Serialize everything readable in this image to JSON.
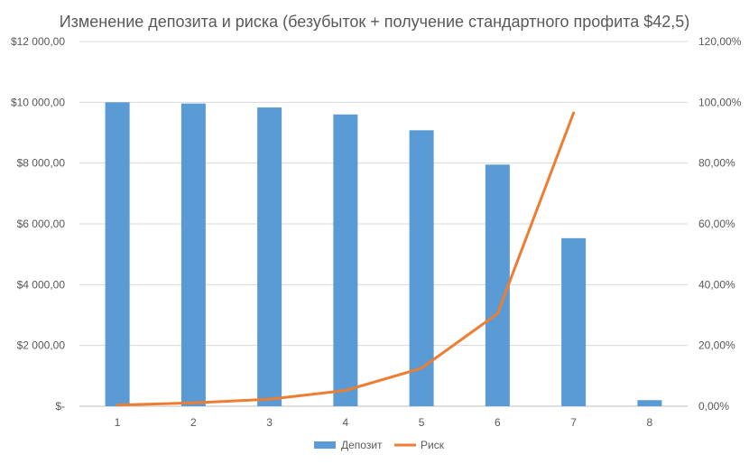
{
  "chart_data": {
    "type": "bar",
    "title": "Изменение депозита и риска (безубыток + получение стандартного профита $42,5)",
    "categories": [
      "1",
      "2",
      "3",
      "4",
      "5",
      "6",
      "7",
      "8"
    ],
    "series": [
      {
        "name": "Депозит",
        "type": "bar",
        "axis": "left",
        "color": "#5B9BD5",
        "values": [
          10000,
          9960,
          9830,
          9600,
          9080,
          7950,
          5530,
          200
        ]
      },
      {
        "name": "Риск",
        "type": "line",
        "axis": "right",
        "color": "#ED7D31",
        "values": [
          0.004,
          0.011,
          0.023,
          0.052,
          0.125,
          0.305,
          0.965,
          null
        ]
      }
    ],
    "y_left": {
      "min": 0,
      "max": 12000,
      "tick_values": [
        0,
        2000,
        4000,
        6000,
        8000,
        10000,
        12000
      ],
      "tick_labels": [
        "$-",
        "$2 000,00",
        "$4 000,00",
        "$6 000,00",
        "$8 000,00",
        "$10 000,00",
        "$12 000,00"
      ]
    },
    "y_right": {
      "min": 0,
      "max": 1.2,
      "tick_labels": [
        "0,00%",
        "20,00%",
        "40,00%",
        "60,00%",
        "80,00%",
        "100,00%",
        "120,00%"
      ]
    },
    "grid": true,
    "legend_position": "bottom",
    "legend": [
      "Депозит",
      "Риск"
    ]
  }
}
